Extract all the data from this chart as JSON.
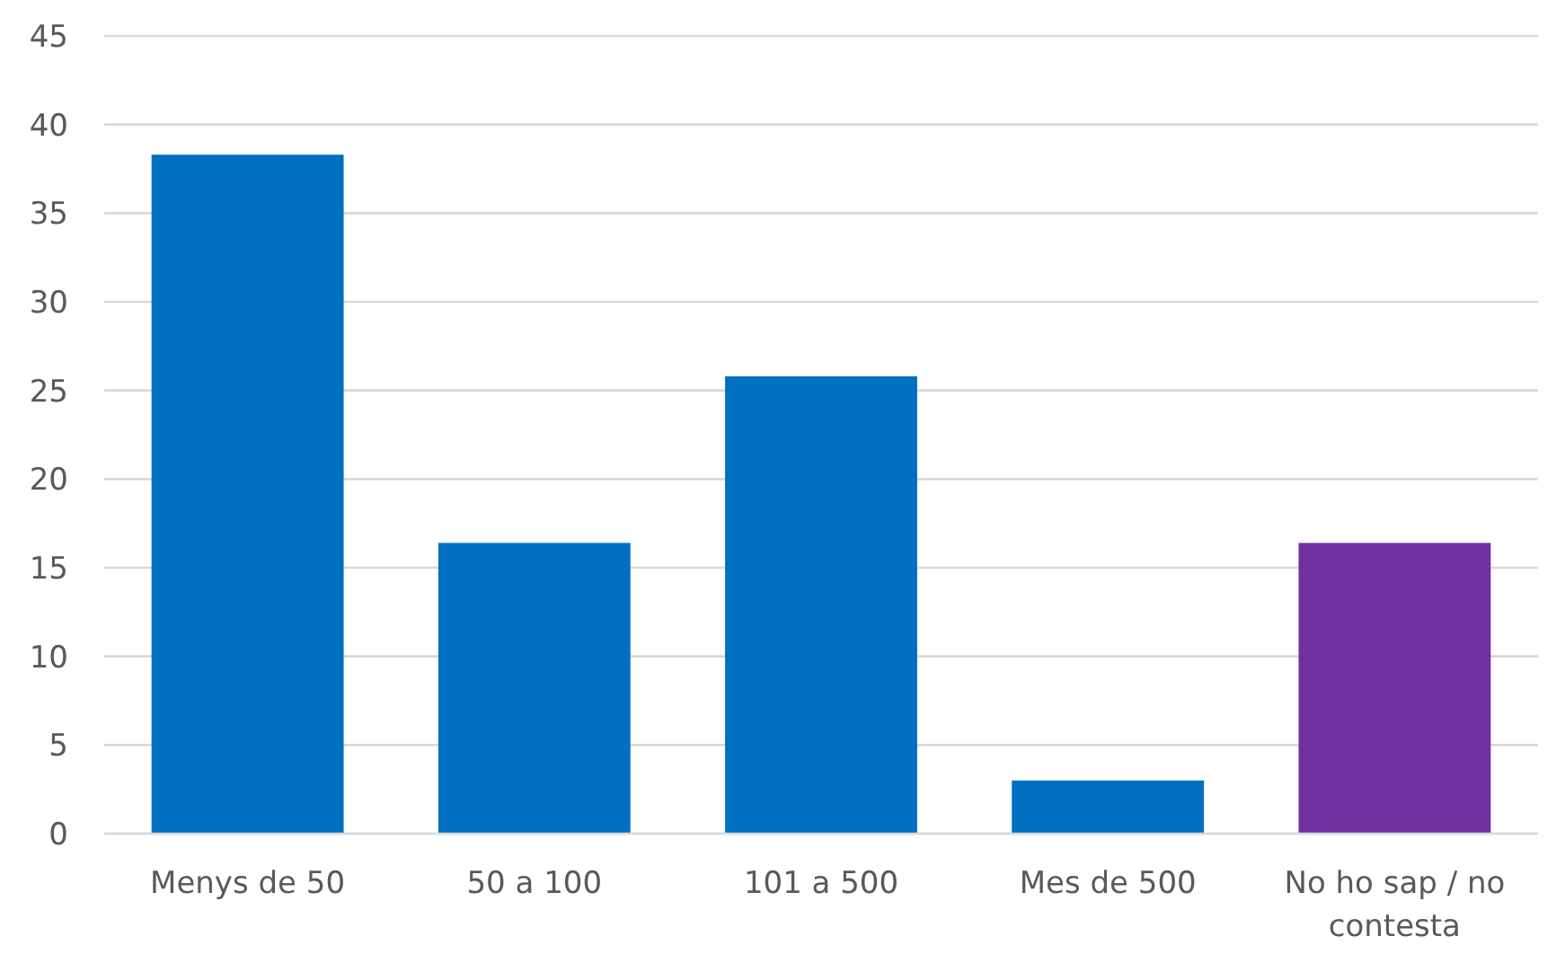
{
  "chart_data": {
    "type": "bar",
    "categories": [
      "Menys de 50",
      "50 a 100",
      "101 a 500",
      "Mes de 500",
      "No ho sap / no contesta"
    ],
    "values": [
      38.3,
      16.4,
      25.8,
      3.0,
      16.4
    ],
    "colors": [
      "#0070c0",
      "#0070c0",
      "#0070c0",
      "#0070c0",
      "#7030a0"
    ],
    "ylim": [
      0,
      45
    ],
    "yticks": [
      0,
      5,
      10,
      15,
      20,
      25,
      30,
      35,
      40,
      45
    ],
    "grid": "y"
  }
}
